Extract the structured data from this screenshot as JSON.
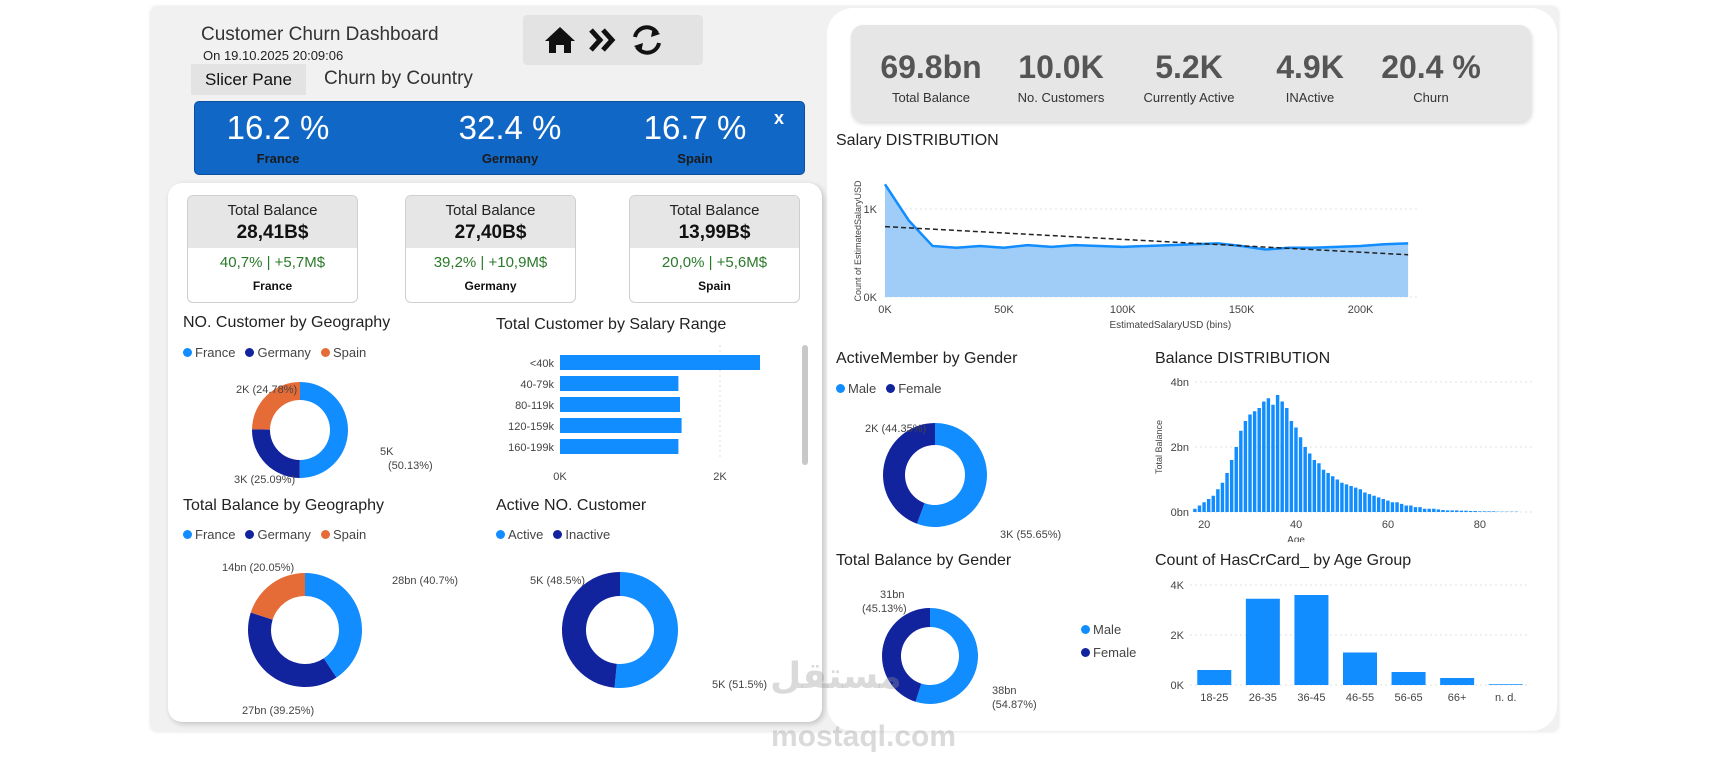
{
  "header": {
    "title": "Customer Churn Dashboard",
    "date": "On 19.10.2025 20:09:06",
    "nav_icons": [
      "home-icon",
      "double-chevron-right-icon",
      "refresh-icon"
    ]
  },
  "tabs": {
    "slicer": "Slicer Pane",
    "churn": "Churn by Country"
  },
  "churn_banner": {
    "close": "x",
    "items": [
      {
        "value": "16.2 %",
        "label": "France"
      },
      {
        "value": "32.4 %",
        "label": "Germany"
      },
      {
        "value": "16.7 %",
        "label": "Spain"
      }
    ]
  },
  "balance_cards": [
    {
      "title": "Total Balance",
      "value": "28,41B$",
      "change": "40,7% | +5,7M$",
      "country": "France"
    },
    {
      "title": "Total Balance",
      "value": "27,40B$",
      "change": "39,2% | +10,9M$",
      "country": "Germany"
    },
    {
      "title": "Total Balance",
      "value": "13,99B$",
      "change": "20,0% | +5,6M$",
      "country": "Spain"
    }
  ],
  "colors": {
    "france": "#118DFF",
    "germany": "#12239E",
    "spain": "#E66C37",
    "accent": "#1167c5",
    "green": "#2a7a2a"
  },
  "kpis": [
    {
      "value": "69.8bn",
      "label": "Total Balance"
    },
    {
      "value": "10.0K",
      "label": "No. Customers"
    },
    {
      "value": "5.2K",
      "label": "Currently Active"
    },
    {
      "value": "4.9K",
      "label": "INActive"
    },
    {
      "value": "20.4 %",
      "label": "Churn"
    }
  ],
  "chart_data": [
    {
      "type": "pie",
      "title": "NO. Customer by Geography",
      "legend": [
        "France",
        "Germany",
        "Spain"
      ],
      "slices": [
        {
          "name": "France",
          "value": 50.13,
          "label1": "5K",
          "label2": "(50.13%)"
        },
        {
          "name": "Germany",
          "value": 25.09,
          "label1": "3K (25.09%)"
        },
        {
          "name": "Spain",
          "value": 24.78,
          "label1": "2K (24.78%)"
        }
      ]
    },
    {
      "type": "bar",
      "title": "Total Customer by Salary Range",
      "categories": [
        "<40k",
        "40-79k",
        "80-119k",
        "120-159k",
        "160-199k"
      ],
      "values": [
        2500,
        1480,
        1500,
        1520,
        1480
      ],
      "xticks": [
        "0K",
        "2K"
      ],
      "xlim": [
        0,
        2500
      ]
    },
    {
      "type": "pie",
      "title": "Total Balance by Geography",
      "legend": [
        "France",
        "Germany",
        "Spain"
      ],
      "slices": [
        {
          "name": "France",
          "value": 40.7,
          "label1": "28bn (40.7%)"
        },
        {
          "name": "Germany",
          "value": 39.25,
          "label1": "27bn (39.25%)"
        },
        {
          "name": "Spain",
          "value": 20.05,
          "label1": "14bn (20.05%)"
        }
      ]
    },
    {
      "type": "pie",
      "title": "Active NO. Customer",
      "legend": [
        "Active",
        "Inactive"
      ],
      "slices": [
        {
          "name": "Active",
          "value": 51.5,
          "label1": "5K (51.5%)"
        },
        {
          "name": "Inactive",
          "value": 48.5,
          "label1": "5K (48.5%)"
        }
      ]
    },
    {
      "type": "area",
      "title": "Salary DISTRIBUTION",
      "xlabel": "EstimatedSalaryUSD (bins)",
      "ylabel": "Count of EstimatedSalaryUSD",
      "x": [
        0,
        10000,
        20000,
        30000,
        40000,
        50000,
        60000,
        70000,
        80000,
        90000,
        100000,
        110000,
        120000,
        130000,
        140000,
        150000,
        160000,
        170000,
        180000,
        190000,
        200000,
        210000,
        220000
      ],
      "values": [
        1280,
        870,
        580,
        560,
        580,
        560,
        590,
        570,
        590,
        580,
        570,
        580,
        590,
        600,
        610,
        580,
        540,
        560,
        560,
        570,
        580,
        600,
        610
      ],
      "trend": [
        800,
        480
      ],
      "xticks": [
        "0K",
        "50K",
        "100K",
        "150K",
        "200K"
      ],
      "yticks": [
        "0K",
        "1K"
      ],
      "xlim": [
        0,
        225000
      ],
      "ylim": [
        0,
        1500
      ]
    },
    {
      "type": "pie",
      "title": "ActiveMember by Gender",
      "legend": [
        "Male",
        "Female"
      ],
      "slices": [
        {
          "name": "Male",
          "value": 55.65,
          "label1": "3K (55.65%)"
        },
        {
          "name": "Female",
          "value": 44.35,
          "label1": "2K (44.35%)"
        }
      ]
    },
    {
      "type": "bar",
      "title": "Balance DISTRIBUTION",
      "xlabel": "Age",
      "ylabel": "Total Balance",
      "xticks": [
        "20",
        "40",
        "60",
        "80"
      ],
      "yticks": [
        "0bn",
        "2bn",
        "4bn"
      ],
      "ylim": [
        0,
        4
      ],
      "x_start": 18,
      "values": [
        0.1,
        0.2,
        0.3,
        0.4,
        0.5,
        0.7,
        0.9,
        1.2,
        1.6,
        2.0,
        2.5,
        2.8,
        3.0,
        3.1,
        3.2,
        3.4,
        3.5,
        3.3,
        3.6,
        3.4,
        3.2,
        2.8,
        2.6,
        2.3,
        2.0,
        1.8,
        1.6,
        1.5,
        1.3,
        1.2,
        1.1,
        1.0,
        0.9,
        0.85,
        0.8,
        0.75,
        0.7,
        0.6,
        0.55,
        0.5,
        0.45,
        0.4,
        0.35,
        0.3,
        0.3,
        0.25,
        0.2,
        0.2,
        0.15,
        0.15,
        0.1,
        0.1,
        0.1,
        0.08,
        0.06,
        0.05,
        0.05,
        0.05,
        0.04,
        0.04,
        0.03,
        0.03,
        0.02,
        0.02,
        0.02,
        0.02,
        0.01,
        0.01,
        0.01,
        0.01,
        0.01
      ]
    },
    {
      "type": "pie",
      "title": "Total Balance by Gender",
      "legend": [
        "Male",
        "Female"
      ],
      "slices": [
        {
          "name": "Male",
          "value": 54.87,
          "label1": "38bn",
          "label2": "(54.87%)"
        },
        {
          "name": "Female",
          "value": 45.13,
          "label1": "31bn",
          "label2": "(45.13%)"
        }
      ]
    },
    {
      "type": "bar",
      "title": "Count of HasCrCard_ by Age Group",
      "categories": [
        "18-25",
        "26-35",
        "36-45",
        "46-55",
        "56-65",
        "66+",
        "n. d."
      ],
      "values": [
        600,
        3450,
        3600,
        1300,
        520,
        280,
        30
      ],
      "yticks": [
        "0K",
        "2K",
        "4K"
      ],
      "ylim": [
        0,
        4000
      ]
    }
  ],
  "watermark": {
    "arabic": "مستقل",
    "latin": "mostaql.com"
  }
}
